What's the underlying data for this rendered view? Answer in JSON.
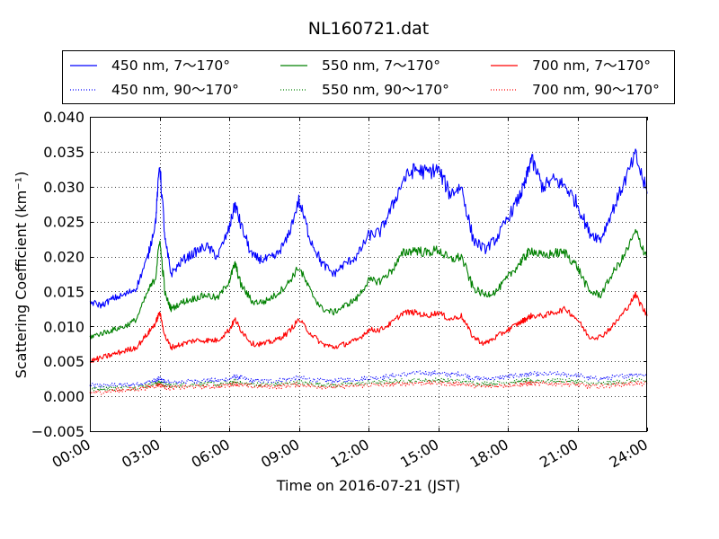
{
  "chart_data": {
    "type": "line",
    "title": "NL160721.dat",
    "xlabel": "Time on 2016-07-21 (JST)",
    "ylabel": "Scattering Coefficient (km⁻¹)",
    "xlim": [
      "00:00",
      "24:00"
    ],
    "ylim": [
      -0.005,
      0.04
    ],
    "grid": true,
    "legend_position": "top",
    "x_ticks": [
      "00:00",
      "03:00",
      "06:00",
      "09:00",
      "12:00",
      "15:00",
      "18:00",
      "21:00",
      "24:00"
    ],
    "y_ticks": [
      "−0.005",
      "0.000",
      "0.005",
      "0.010",
      "0.015",
      "0.020",
      "0.025",
      "0.030",
      "0.035",
      "0.040"
    ],
    "x": [
      "00:00",
      "00:30",
      "01:00",
      "01:30",
      "02:00",
      "02:30",
      "02:50",
      "03:00",
      "03:15",
      "03:30",
      "04:00",
      "04:30",
      "05:00",
      "05:30",
      "06:00",
      "06:15",
      "06:30",
      "07:00",
      "07:30",
      "08:00",
      "08:30",
      "09:00",
      "09:30",
      "10:00",
      "10:30",
      "11:00",
      "11:30",
      "12:00",
      "12:30",
      "13:00",
      "13:30",
      "14:00",
      "14:30",
      "15:00",
      "15:30",
      "16:00",
      "16:30",
      "17:00",
      "17:30",
      "18:00",
      "18:30",
      "18:45",
      "19:00",
      "19:30",
      "20:00",
      "20:30",
      "21:00",
      "21:30",
      "22:00",
      "22:30",
      "23:00",
      "23:30",
      "24:00"
    ],
    "series": [
      {
        "name": "450 nm, 7～170°",
        "color": "#0000ff",
        "style": "solid",
        "values": [
          0.0135,
          0.013,
          0.014,
          0.0145,
          0.0155,
          0.02,
          0.025,
          0.0335,
          0.022,
          0.0175,
          0.0195,
          0.0205,
          0.0215,
          0.02,
          0.024,
          0.0275,
          0.0245,
          0.02,
          0.0195,
          0.02,
          0.0225,
          0.028,
          0.0225,
          0.019,
          0.0175,
          0.019,
          0.02,
          0.023,
          0.0235,
          0.027,
          0.031,
          0.0325,
          0.032,
          0.0325,
          0.029,
          0.03,
          0.0225,
          0.021,
          0.0225,
          0.0255,
          0.0285,
          0.0305,
          0.034,
          0.03,
          0.031,
          0.03,
          0.0275,
          0.0235,
          0.0225,
          0.0265,
          0.0305,
          0.0345,
          0.029
        ]
      },
      {
        "name": "550 nm, 7～170°",
        "color": "#008000",
        "style": "solid",
        "values": [
          0.0085,
          0.009,
          0.0095,
          0.01,
          0.011,
          0.015,
          0.017,
          0.0225,
          0.0145,
          0.0125,
          0.0135,
          0.014,
          0.0145,
          0.014,
          0.0165,
          0.019,
          0.016,
          0.0135,
          0.0135,
          0.0145,
          0.016,
          0.0185,
          0.015,
          0.0125,
          0.012,
          0.013,
          0.014,
          0.0165,
          0.0165,
          0.018,
          0.0205,
          0.021,
          0.0205,
          0.021,
          0.0195,
          0.02,
          0.0155,
          0.0145,
          0.015,
          0.017,
          0.019,
          0.02,
          0.021,
          0.02,
          0.0205,
          0.0205,
          0.0185,
          0.015,
          0.0145,
          0.0175,
          0.02,
          0.0235,
          0.02
        ]
      },
      {
        "name": "700 nm, 7～170°",
        "color": "#ff0000",
        "style": "solid",
        "values": [
          0.005,
          0.0055,
          0.006,
          0.0065,
          0.007,
          0.009,
          0.0105,
          0.012,
          0.0085,
          0.007,
          0.0075,
          0.008,
          0.008,
          0.008,
          0.0095,
          0.011,
          0.0095,
          0.0075,
          0.0075,
          0.008,
          0.009,
          0.011,
          0.009,
          0.0075,
          0.007,
          0.0075,
          0.008,
          0.0095,
          0.0095,
          0.0105,
          0.012,
          0.012,
          0.0115,
          0.012,
          0.011,
          0.0115,
          0.0085,
          0.0075,
          0.0085,
          0.0095,
          0.0105,
          0.011,
          0.0115,
          0.0115,
          0.012,
          0.0125,
          0.011,
          0.0085,
          0.0085,
          0.01,
          0.012,
          0.0145,
          0.0115
        ]
      },
      {
        "name": "450 nm, 90～170°",
        "color": "#0000ff",
        "style": "dotted",
        "values": [
          0.0015,
          0.0015,
          0.0016,
          0.0016,
          0.0017,
          0.002,
          0.0022,
          0.0025,
          0.002,
          0.0019,
          0.0021,
          0.0022,
          0.0023,
          0.0022,
          0.0025,
          0.0028,
          0.0026,
          0.0022,
          0.0022,
          0.0022,
          0.0024,
          0.0026,
          0.0024,
          0.0022,
          0.0022,
          0.0023,
          0.0024,
          0.0026,
          0.0027,
          0.0029,
          0.0031,
          0.0033,
          0.0033,
          0.0033,
          0.0031,
          0.0032,
          0.0026,
          0.0025,
          0.0026,
          0.0028,
          0.003,
          0.0031,
          0.0032,
          0.0031,
          0.0032,
          0.0031,
          0.003,
          0.0026,
          0.0025,
          0.0027,
          0.0029,
          0.0032,
          0.003
        ]
      },
      {
        "name": "550 nm, 90～170°",
        "color": "#008000",
        "style": "dotted",
        "values": [
          0.001,
          0.0011,
          0.0012,
          0.0012,
          0.0013,
          0.0016,
          0.0018,
          0.002,
          0.0016,
          0.0015,
          0.0016,
          0.0017,
          0.0018,
          0.0017,
          0.0019,
          0.0021,
          0.0019,
          0.0017,
          0.0017,
          0.0017,
          0.0018,
          0.002,
          0.0018,
          0.0017,
          0.0016,
          0.0017,
          0.0018,
          0.0019,
          0.002,
          0.0021,
          0.0022,
          0.0023,
          0.0023,
          0.0023,
          0.0022,
          0.0022,
          0.0019,
          0.0018,
          0.0019,
          0.002,
          0.0021,
          0.0022,
          0.0022,
          0.0022,
          0.0022,
          0.0022,
          0.0021,
          0.0018,
          0.0018,
          0.0019,
          0.0021,
          0.0023,
          0.0021
        ]
      },
      {
        "name": "700 nm, 90～170°",
        "color": "#ff0000",
        "style": "dotted",
        "values": [
          0.0005,
          0.0006,
          0.0008,
          0.0009,
          0.001,
          0.0013,
          0.0015,
          0.0017,
          0.0013,
          0.0012,
          0.0013,
          0.0014,
          0.0014,
          0.0014,
          0.0016,
          0.0018,
          0.0016,
          0.0014,
          0.0014,
          0.0014,
          0.0015,
          0.0017,
          0.0015,
          0.0014,
          0.0013,
          0.0014,
          0.0015,
          0.0016,
          0.0016,
          0.0017,
          0.0018,
          0.0019,
          0.0019,
          0.0019,
          0.0018,
          0.0018,
          0.0015,
          0.0014,
          0.0015,
          0.0016,
          0.0017,
          0.0018,
          0.0018,
          0.0018,
          0.0018,
          0.0018,
          0.0017,
          0.0014,
          0.0014,
          0.0016,
          0.0017,
          0.0019,
          0.0017
        ]
      }
    ]
  }
}
